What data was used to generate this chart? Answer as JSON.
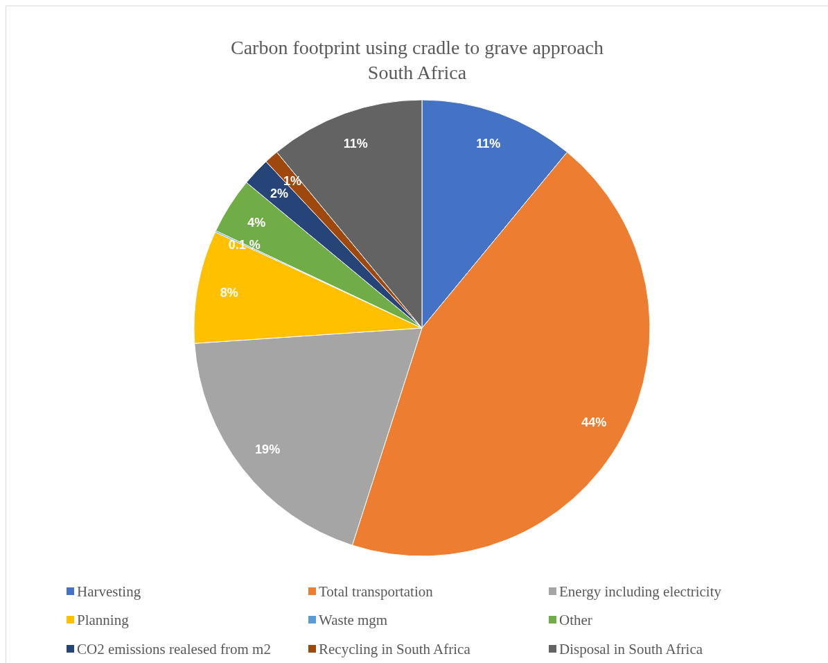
{
  "chart_data": {
    "type": "pie",
    "title": "Carbon footprint using cradle to grave approach",
    "subtitle": "South Africa",
    "categories": [
      "Harvesting",
      "Total transportation",
      "Energy including electricity",
      "Planning",
      "Waste mgm",
      "Other",
      "CO2 emissions realesed from m2",
      "Recycling in South Africa",
      "Disposal in South Africa"
    ],
    "values": [
      11,
      44,
      19,
      8,
      0.1,
      4,
      2,
      1,
      11
    ],
    "colors": [
      "#4472c4",
      "#ed7d31",
      "#a5a5a5",
      "#ffc000",
      "#5b9bd5",
      "#70ad47",
      "#264478",
      "#9e480e",
      "#636363"
    ],
    "value_labels": [
      "11%",
      "44%",
      "19%",
      "8%",
      "0.1 %",
      "4%",
      "2%",
      "1%",
      "11%"
    ],
    "legend": "bottom"
  }
}
